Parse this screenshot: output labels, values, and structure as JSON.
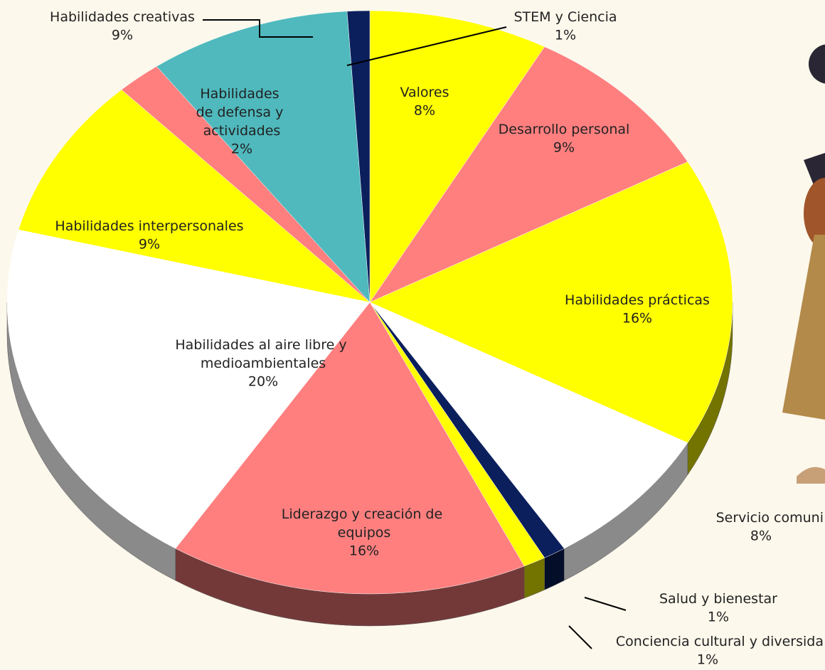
{
  "chart_data": {
    "type": "pie",
    "categories": [
      "Valores",
      "Desarrollo personal",
      "Habilidades prácticas",
      "Servicio comuni",
      "Salud y bienestar",
      "Conciencia cultural y diversida",
      "Liderazgo y creación de equipos",
      "Habilidades al aire libre y medioambientales",
      "Habilidades interpersonales",
      "Habilidades de defensa y actividades",
      "Habilidades creativas",
      "STEM y Ciencia"
    ],
    "values": [
      8,
      9,
      16,
      8,
      1,
      1,
      16,
      20,
      9,
      2,
      9,
      1
    ],
    "value_labels": [
      "8%",
      "9%",
      "16%",
      "8%",
      "1%",
      "1%",
      "16%",
      "20%",
      "9%",
      "2%",
      "9%",
      "1%"
    ],
    "colors": [
      "#ffff00",
      "#ff7f7f",
      "#ffff00",
      "#ffffff",
      "#0b1f5c",
      "#ffff00",
      "#ff7f7f",
      "#ffffff",
      "#ffff00",
      "#ff7f7f",
      "#4fb9bd",
      "#0b1f5c"
    ]
  }
}
